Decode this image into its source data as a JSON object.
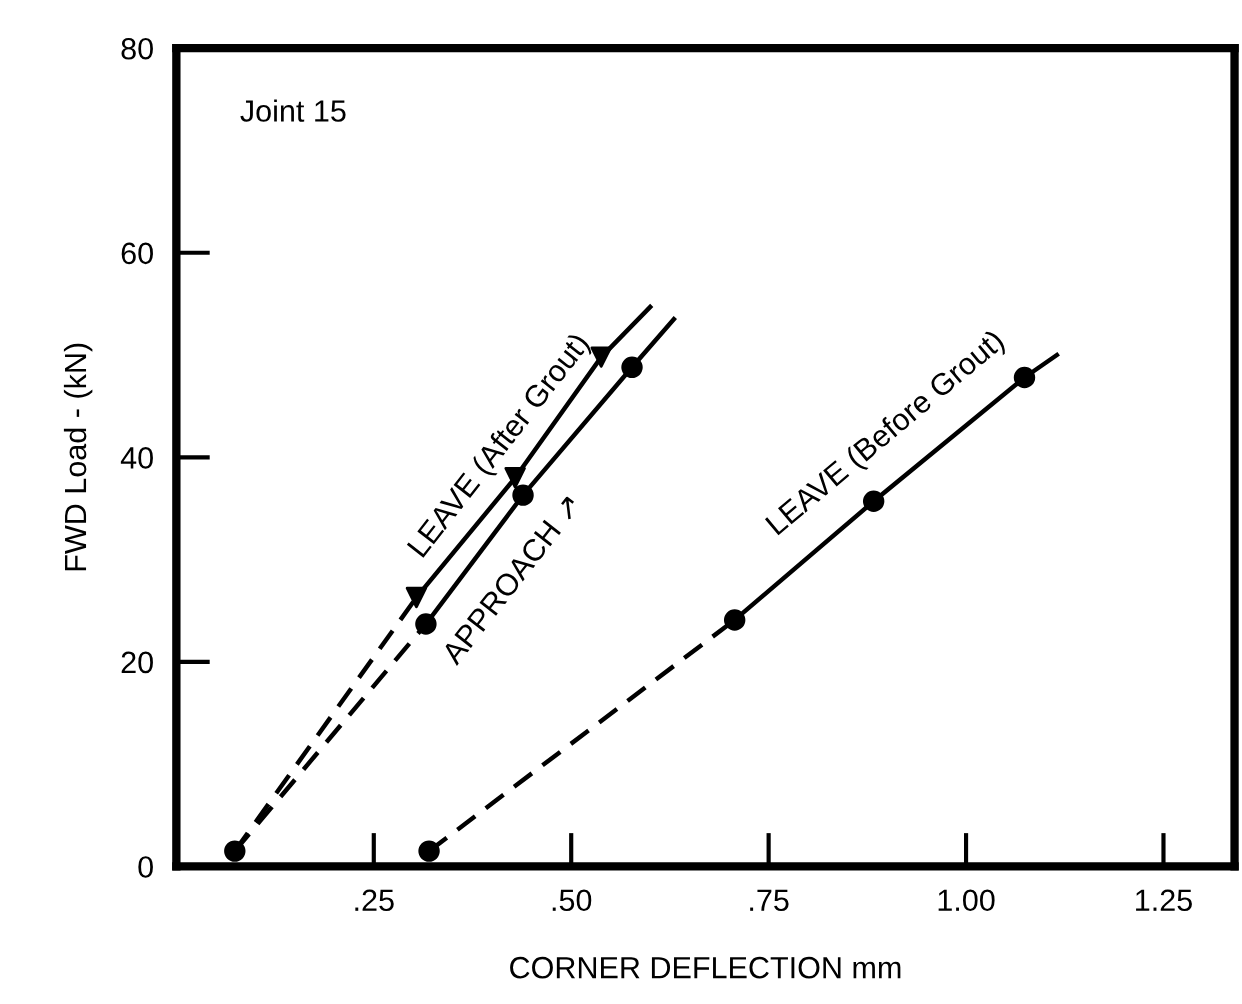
{
  "chart_data": {
    "type": "line",
    "xlabel": "CORNER DEFLECTION mm",
    "ylabel": "FWD Load - (kN)",
    "xlim": [
      0,
      1.34
    ],
    "ylim": [
      0,
      80
    ],
    "xticks": [
      {
        "value": 0.25,
        "label": ".25"
      },
      {
        "value": 0.5,
        "label": ".50"
      },
      {
        "value": 0.75,
        "label": ".75"
      },
      {
        "value": 1.0,
        "label": "1.00"
      },
      {
        "value": 1.25,
        "label": "1.25"
      }
    ],
    "yticks": [
      0,
      20,
      40,
      60,
      80
    ],
    "grid": false,
    "legend": false,
    "series": [
      {
        "color": "#000000",
        "line_style": "dashed",
        "marker": "none",
        "x": [
          0.32,
          0.707
        ],
        "values": [
          1.5,
          24.1
        ]
      },
      {
        "color": "#000000",
        "line_style": "solid",
        "marker": "none",
        "x": [
          0.707,
          0.883,
          1.074,
          1.115
        ],
        "values": [
          24.1,
          35.7,
          47.8,
          50
        ]
      },
      {
        "type": "scatter",
        "color": "#000000",
        "marker": "circle",
        "x": [
          0.32,
          0.707,
          0.883,
          1.074
        ],
        "values": [
          1.5,
          24.1,
          35.7,
          47.8
        ]
      },
      {
        "color": "#000000",
        "line_style": "dashed",
        "marker": "none",
        "x": [
          0.074,
          0.304
        ],
        "values": [
          1.5,
          26.3
        ]
      },
      {
        "color": "#000000",
        "line_style": "solid",
        "marker": "none",
        "x": [
          0.304,
          0.429,
          0.538,
          0.6
        ],
        "values": [
          26.3,
          38,
          49.8,
          54.7
        ]
      },
      {
        "type": "scatter",
        "color": "#000000",
        "marker": "triangle",
        "x": [
          0.304,
          0.429,
          0.538
        ],
        "values": [
          26.3,
          38,
          49.8
        ]
      },
      {
        "color": "#000000",
        "line_style": "dashed",
        "marker": "none",
        "x": [
          0.074,
          0.316
        ],
        "values": [
          1.5,
          23.7
        ]
      },
      {
        "color": "#000000",
        "line_style": "solid",
        "marker": "none",
        "x": [
          0.316,
          0.439,
          0.577,
          0.63
        ],
        "values": [
          23.7,
          36.3,
          48.8,
          53.5
        ]
      },
      {
        "type": "scatter",
        "color": "#000000",
        "marker": "circle",
        "x": [
          0.074,
          0.316,
          0.439,
          0.577
        ],
        "values": [
          1.5,
          23.7,
          36.3,
          48.8
        ]
      }
    ],
    "annotations": [
      "Joint 15",
      "LEAVE (After Grout)",
      "APPROACH ↗",
      "LEAVE (Before Grout)"
    ]
  }
}
